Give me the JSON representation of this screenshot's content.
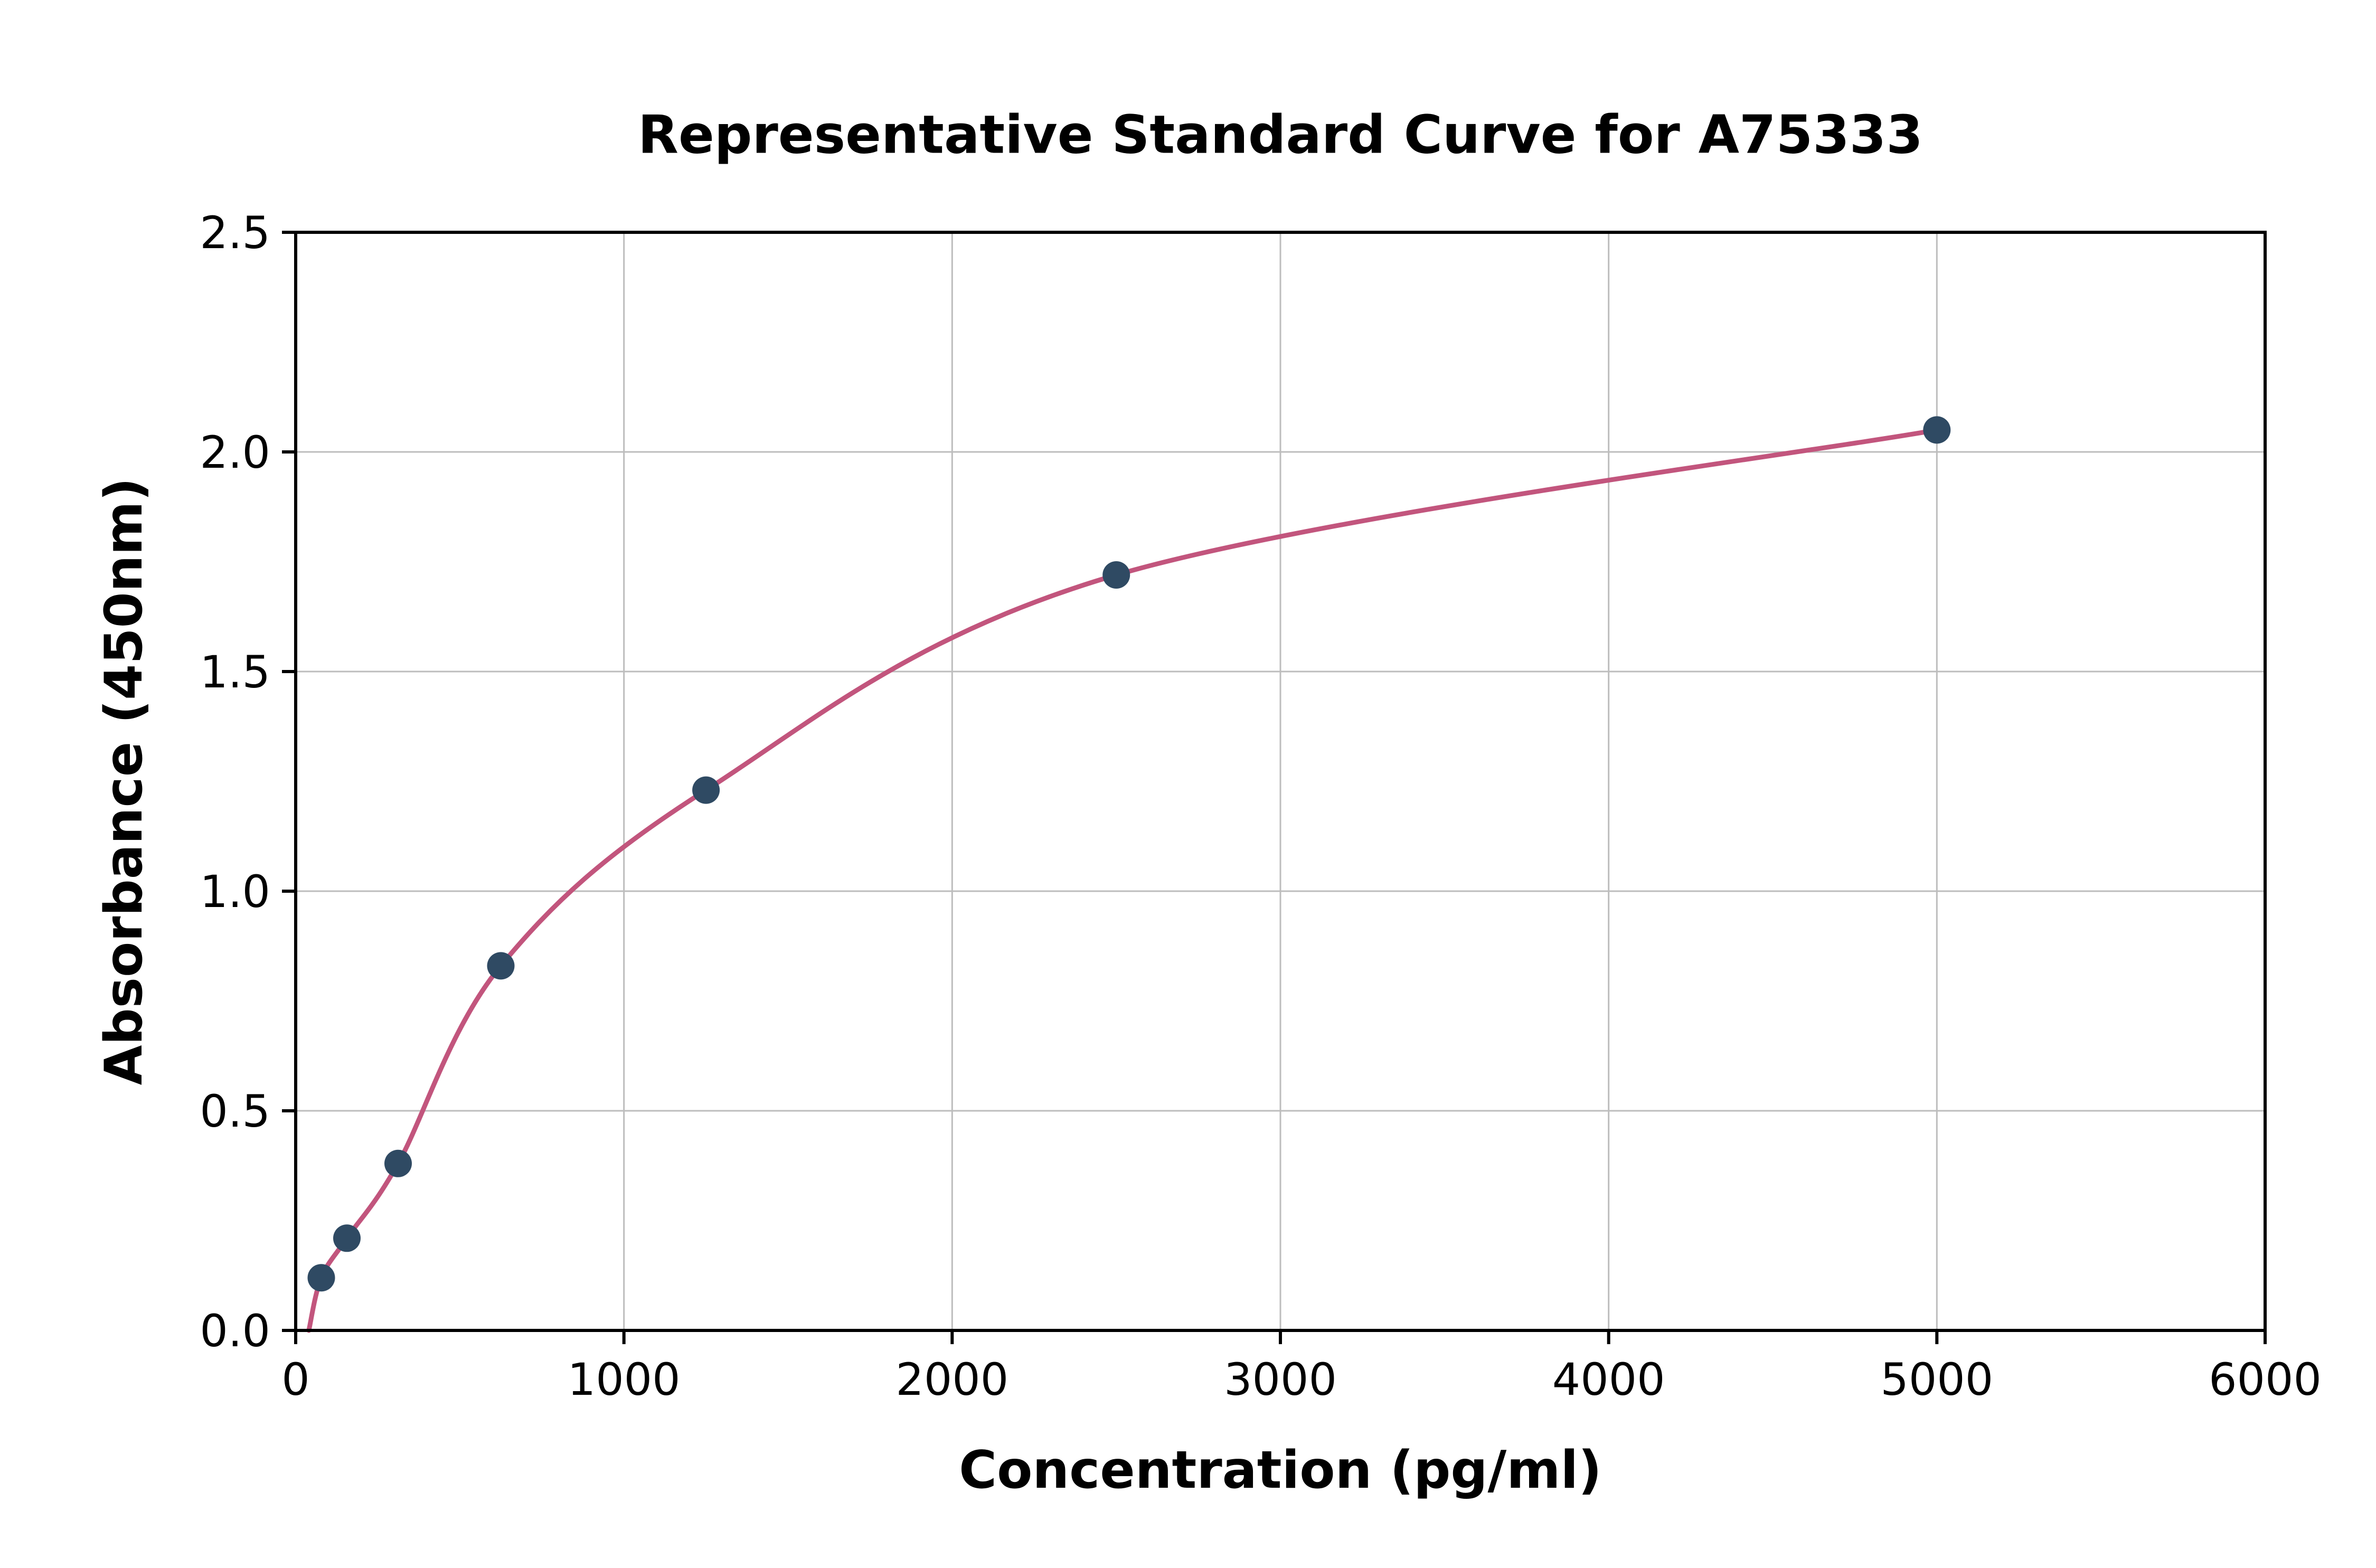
{
  "figure": {
    "background": "#ffffff"
  },
  "chart_data": {
    "type": "scatter",
    "curve": "fitted standard curve through points",
    "title": "Representative Standard Curve for A75333",
    "xlabel": "Concentration (pg/ml)",
    "ylabel": "Absorbance (450nm)",
    "xlim": [
      0,
      6000
    ],
    "ylim": [
      0,
      2.5
    ],
    "x_ticks": [
      0,
      1000,
      2000,
      3000,
      4000,
      5000,
      6000
    ],
    "x_tick_labels": [
      "0",
      "1000",
      "2000",
      "3000",
      "4000",
      "5000",
      "6000"
    ],
    "y_ticks": [
      0,
      0.5,
      1,
      1.5,
      2,
      2.5
    ],
    "y_tick_labels": [
      "0.0",
      "0.5",
      "1.0",
      "1.5",
      "2.0",
      "2.5"
    ],
    "grid": true,
    "legend": "none",
    "points": [
      {
        "x": 78,
        "y": 0.12
      },
      {
        "x": 156,
        "y": 0.21
      },
      {
        "x": 312,
        "y": 0.38
      },
      {
        "x": 625,
        "y": 0.83
      },
      {
        "x": 1250,
        "y": 1.23
      },
      {
        "x": 2500,
        "y": 1.72
      },
      {
        "x": 5000,
        "y": 2.05
      }
    ],
    "curve_start": {
      "x": 40,
      "y": 0.0
    },
    "colors": {
      "curve": "#c2557d",
      "points": "#2f4a63",
      "grid": "#bdbdbd",
      "axis": "#000000",
      "background": "#ffffff"
    }
  }
}
